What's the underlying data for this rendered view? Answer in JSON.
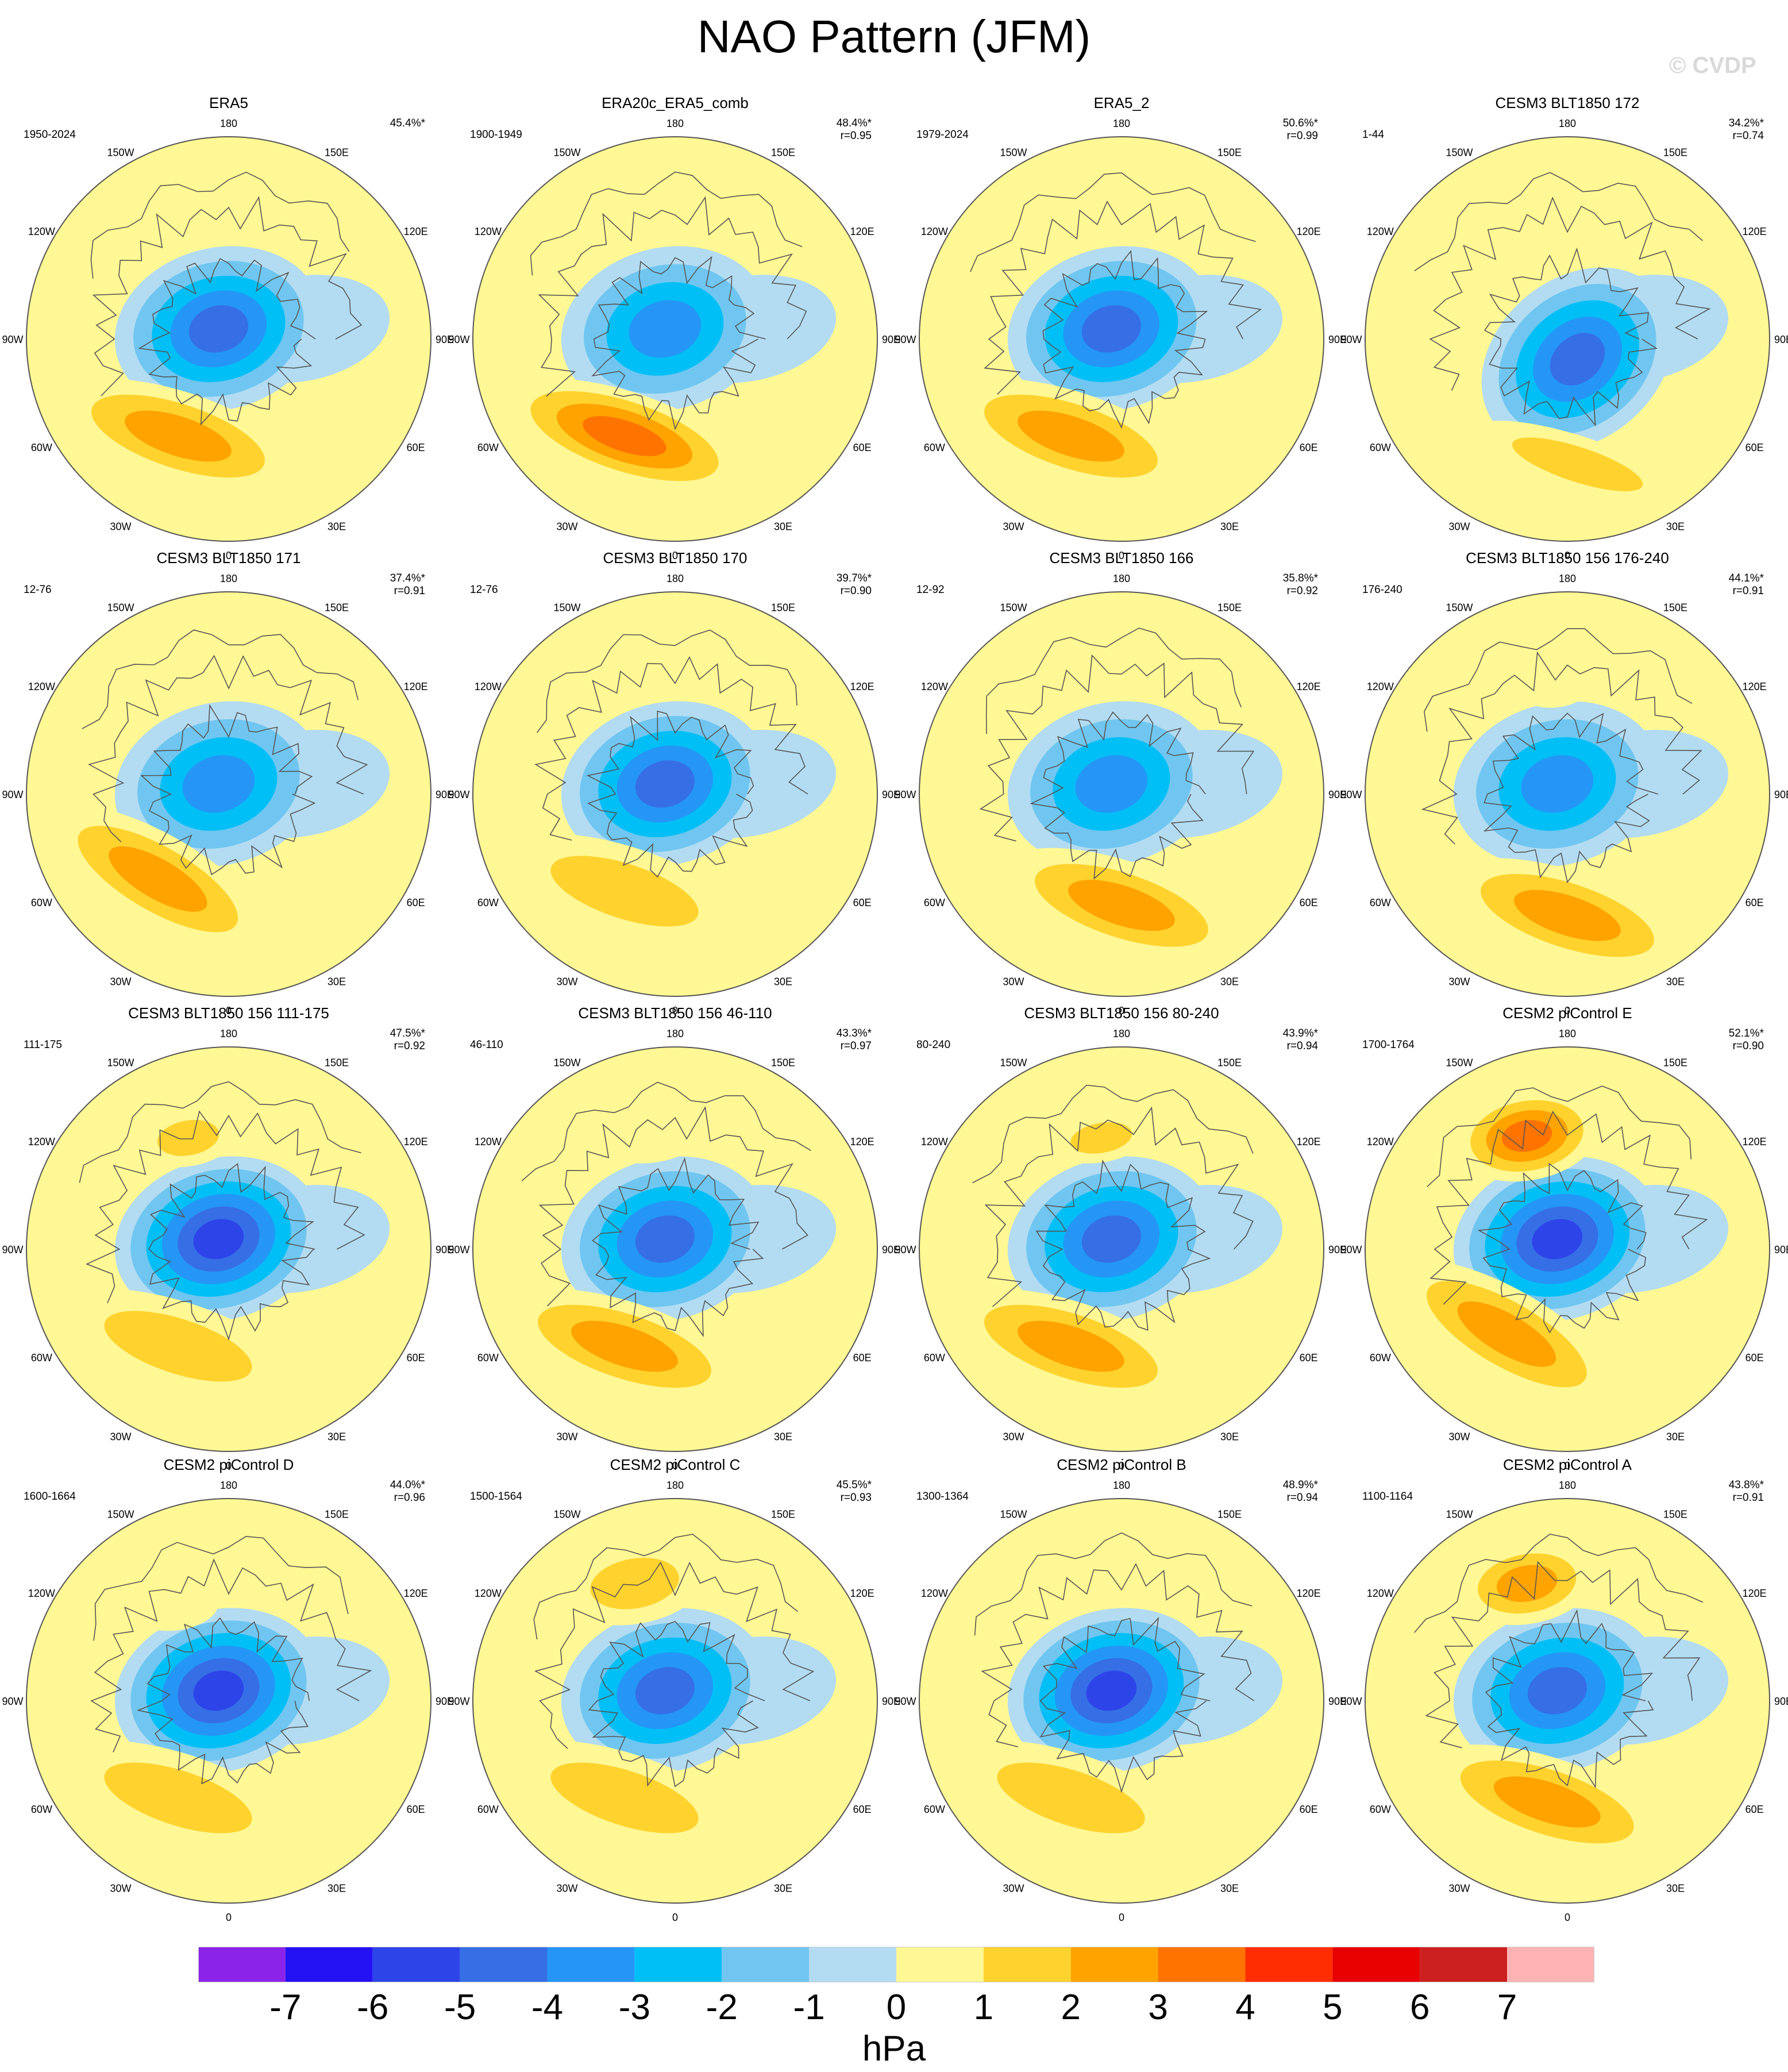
{
  "title": "NAO Pattern (JFM)",
  "watermark": "© CVDP",
  "lon_labels": [
    "180",
    "150E",
    "120E",
    "90E",
    "60E",
    "30E",
    "0",
    "30W",
    "60W",
    "90W",
    "120W",
    "150W"
  ],
  "colorbar": {
    "units": "hPa",
    "ticks": [
      "-7",
      "-6",
      "-5",
      "-4",
      "-3",
      "-2",
      "-1",
      "0",
      "1",
      "2",
      "3",
      "4",
      "5",
      "6",
      "7"
    ],
    "colors": [
      "#8b23e8",
      "#2412f5",
      "#2d44e8",
      "#366ee6",
      "#2596f5",
      "#00bff7",
      "#70c6f0",
      "#b3dcf2",
      "#fff894",
      "#ffd22e",
      "#ffa300",
      "#ff7300",
      "#ff2d00",
      "#e80000",
      "#cc1f1f",
      "#ffb3b3"
    ]
  },
  "panels": [
    {
      "title": "ERA5",
      "period": "1950-2024",
      "pct": "45.4%*",
      "r": ""
    },
    {
      "title": "ERA20c_ERA5_comb",
      "period": "1900-1949",
      "pct": "48.4%*",
      "r": "r=0.95"
    },
    {
      "title": "ERA5_2",
      "period": "1979-2024",
      "pct": "50.6%*",
      "r": "r=0.99"
    },
    {
      "title": "CESM3 BLT1850 172",
      "period": "1-44",
      "pct": "34.2%*",
      "r": "r=0.74"
    },
    {
      "title": "CESM3 BLT1850 171",
      "period": "12-76",
      "pct": "37.4%*",
      "r": "r=0.91"
    },
    {
      "title": "CESM3 BLT1850 170",
      "period": "12-76",
      "pct": "39.7%*",
      "r": "r=0.90"
    },
    {
      "title": "CESM3 BLT1850 166",
      "period": "12-92",
      "pct": "35.8%*",
      "r": "r=0.92"
    },
    {
      "title": "CESM3 BLT1850 156 176-240",
      "period": "176-240",
      "pct": "44.1%*",
      "r": "r=0.91"
    },
    {
      "title": "CESM3 BLT1850 156 111-175",
      "period": "111-175",
      "pct": "47.5%*",
      "r": "r=0.92"
    },
    {
      "title": "CESM3 BLT1850 156 46-110",
      "period": "46-110",
      "pct": "43.3%*",
      "r": "r=0.97"
    },
    {
      "title": "CESM3 BLT1850 156 80-240",
      "period": "80-240",
      "pct": "43.9%*",
      "r": "r=0.94"
    },
    {
      "title": "CESM2 piControl E",
      "period": "1700-1764",
      "pct": "52.1%*",
      "r": "r=0.90"
    },
    {
      "title": "CESM2 piControl D",
      "period": "1600-1664",
      "pct": "44.0%*",
      "r": "r=0.96"
    },
    {
      "title": "CESM2 piControl C",
      "period": "1500-1564",
      "pct": "45.5%*",
      "r": "r=0.93"
    },
    {
      "title": "CESM2 piControl B",
      "period": "1300-1364",
      "pct": "48.9%*",
      "r": "r=0.94"
    },
    {
      "title": "CESM2 piControl A",
      "period": "1100-1164",
      "pct": "43.8%*",
      "r": "r=0.91"
    }
  ]
}
